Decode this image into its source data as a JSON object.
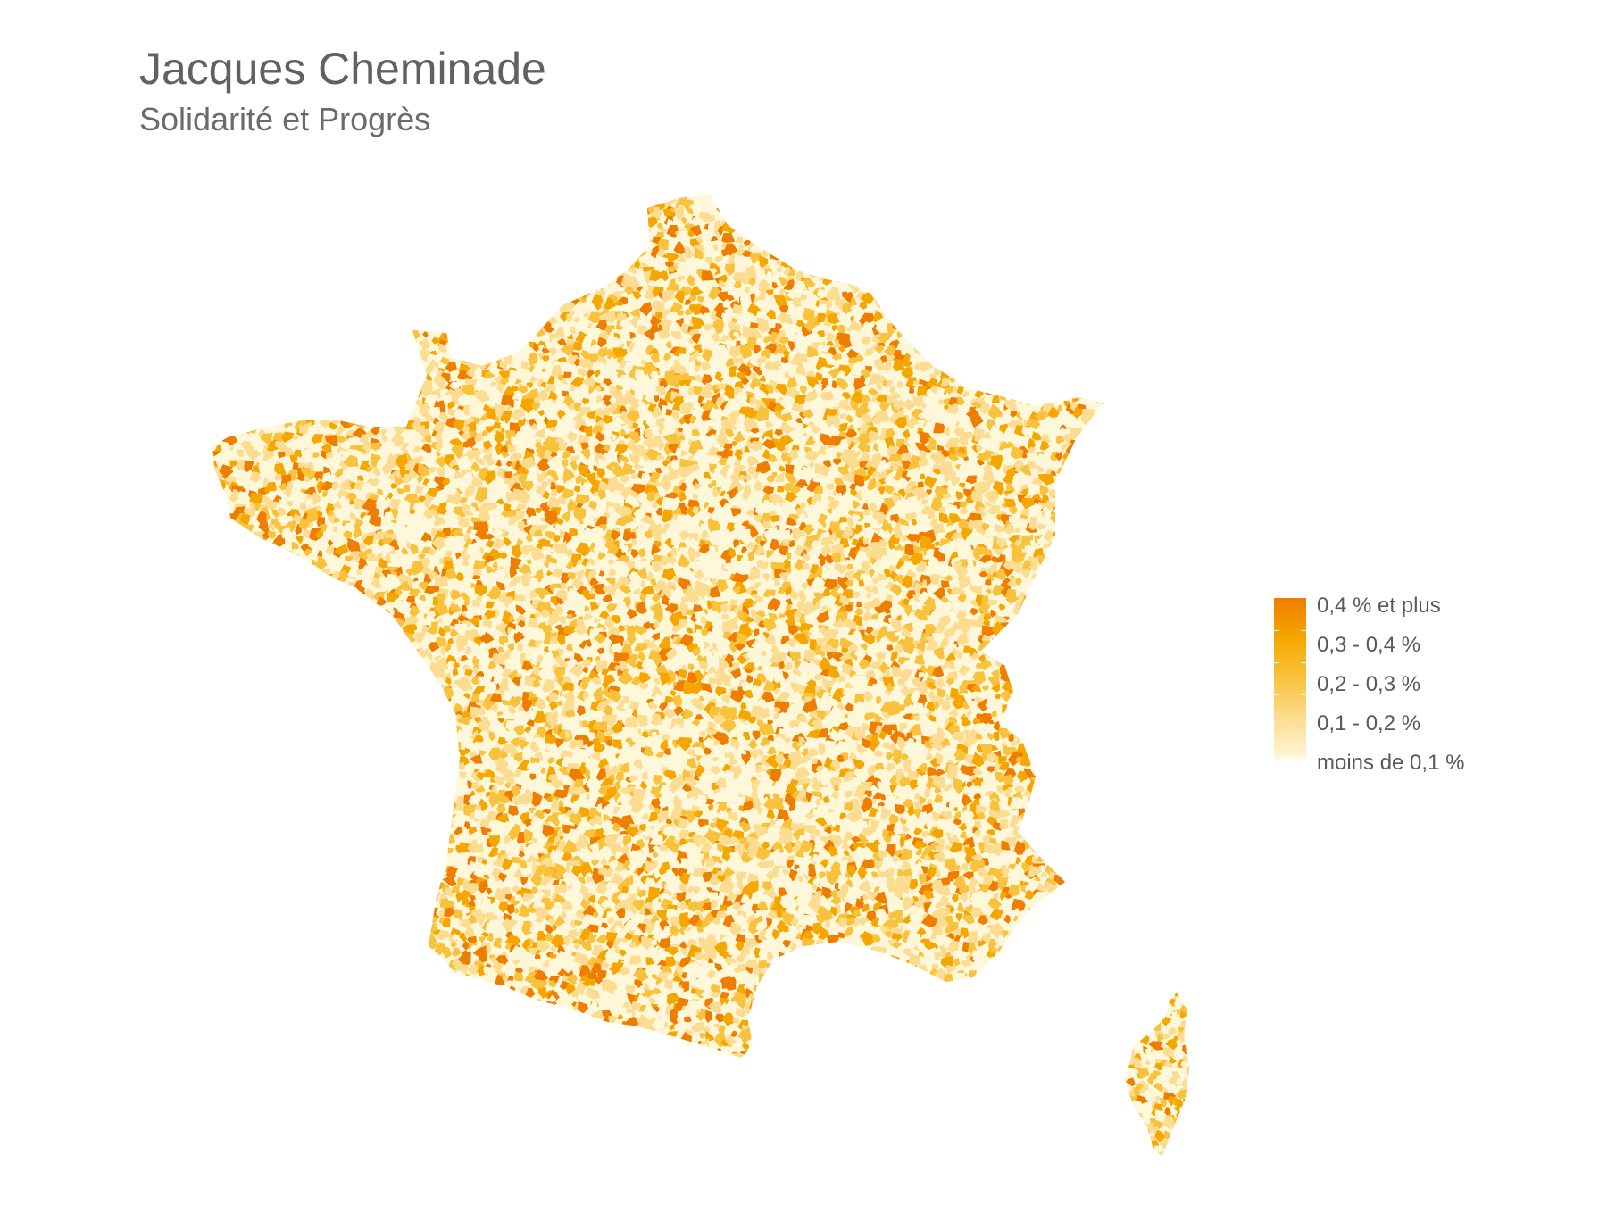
{
  "title": "Jacques Cheminade",
  "subtitle": "Solidarité et Progrès",
  "legend": {
    "labels": [
      "0,4 % et plus",
      "0,3 - 0,4 %",
      "0,2 - 0,3 %",
      "0,1 - 0,2 %",
      "moins de 0,1 %"
    ],
    "colors": [
      "#ef7d00",
      "#f5a600",
      "#f8c23d",
      "#fbdc90",
      "#fff7d9"
    ]
  }
}
